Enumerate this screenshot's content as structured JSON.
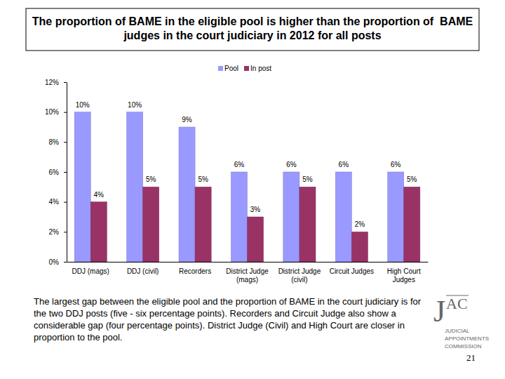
{
  "chart_data": {
    "type": "bar",
    "title": "The proportion of BAME in the eligible pool is higher than the proportion of  BAME judges in the court judiciary in 2012 for all posts",
    "categories": [
      "DDJ (mags)",
      "DDJ (civil)",
      "Recorders",
      "District Judge (mags)",
      "District Judge (civil)",
      "Circuit Judges",
      "High Court Judges"
    ],
    "series": [
      {
        "name": "Pool",
        "color": "#9999ff",
        "values": [
          10,
          10,
          9,
          6,
          6,
          6,
          6
        ],
        "value_labels": [
          "10%",
          "10%",
          "9%",
          "6%",
          "6%",
          "6%",
          "6%"
        ]
      },
      {
        "name": "In post",
        "color": "#993366",
        "values": [
          4,
          5,
          5,
          3,
          5,
          2,
          5
        ],
        "value_labels": [
          "4%",
          "5%",
          "5%",
          "3%",
          "5%",
          "2%",
          "5%"
        ]
      }
    ],
    "ylim": [
      0,
      12
    ],
    "yticks": [
      {
        "value": 0,
        "label": "0%"
      },
      {
        "value": 2,
        "label": "2%"
      },
      {
        "value": 4,
        "label": "4%"
      },
      {
        "value": 6,
        "label": "6%"
      },
      {
        "value": 8,
        "label": "8%"
      },
      {
        "value": 10,
        "label": "10%"
      },
      {
        "value": 12,
        "label": "12%"
      }
    ],
    "grid": false,
    "legend": "top",
    "data_labels": true
  },
  "caption": "The largest gap between the eligible pool and the proportion of BAME in the court judiciary is for the two DDJ posts (five - six percentage points). Recorders and Circuit Judge also show a considerable gap (four percentage points). District Judge (Civil) and High Court are closer in proportion to the pool.",
  "logo": {
    "mark_j": "J",
    "mark_ac": "AC",
    "lines": [
      "JUDICIAL",
      "APPOINTMENTS",
      "COMMISSION"
    ]
  },
  "page_number": "21"
}
